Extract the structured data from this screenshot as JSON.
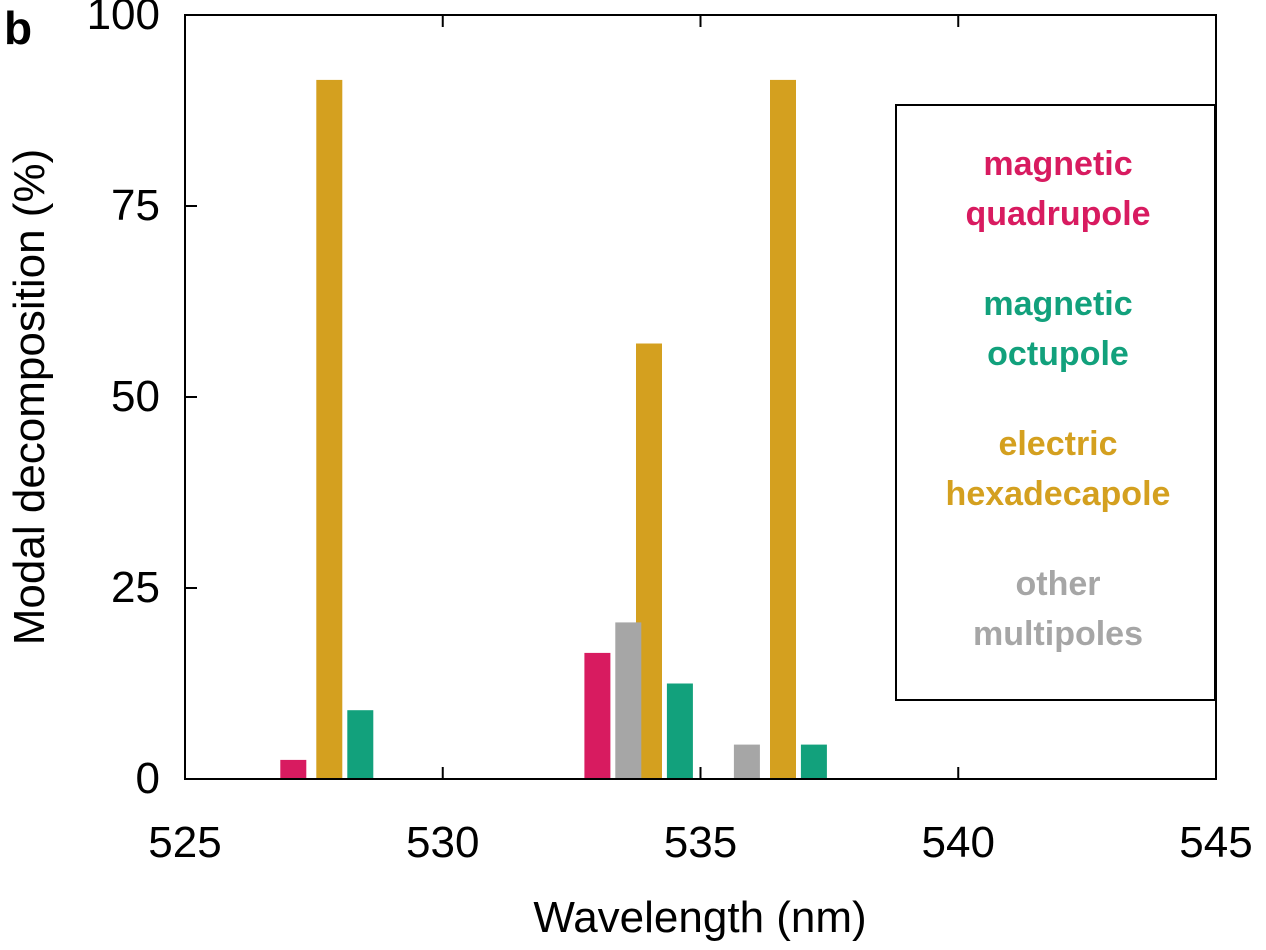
{
  "panel_label": "b",
  "chart_data": {
    "type": "bar",
    "xlabel": "Wavelength (nm)",
    "ylabel": "Modal decomposition (%)",
    "xlim": [
      525,
      545
    ],
    "ylim": [
      0,
      100
    ],
    "xticks": [
      525,
      530,
      535,
      540,
      545
    ],
    "yticks": [
      0,
      25,
      50,
      75,
      100
    ],
    "grid": false,
    "legend_placement": "right",
    "legend_boxed": true,
    "series": [
      {
        "key": "mq",
        "legend_lines": [
          "magnetic",
          "quadrupole"
        ],
        "color": "#d81b60",
        "points": [
          {
            "x": 527.1,
            "y": 2.5
          },
          {
            "x": 533.0,
            "y": 16.5
          }
        ]
      },
      {
        "key": "mo",
        "legend_lines": [
          "magnetic",
          "octupole"
        ],
        "color": "#12a17c",
        "points": [
          {
            "x": 528.4,
            "y": 9.0
          },
          {
            "x": 534.6,
            "y": 12.5
          },
          {
            "x": 537.2,
            "y": 4.5
          }
        ]
      },
      {
        "key": "eh",
        "legend_lines": [
          "electric",
          "hexadecapole"
        ],
        "color": "#d4a01f",
        "points": [
          {
            "x": 527.8,
            "y": 91.5
          },
          {
            "x": 534.0,
            "y": 57.0
          },
          {
            "x": 536.6,
            "y": 91.5
          }
        ]
      },
      {
        "key": "other",
        "legend_lines": [
          "other",
          "multipoles"
        ],
        "color": "#a6a6a6",
        "points": [
          {
            "x": 533.6,
            "y": 20.5
          },
          {
            "x": 535.9,
            "y": 4.5
          }
        ]
      }
    ]
  }
}
